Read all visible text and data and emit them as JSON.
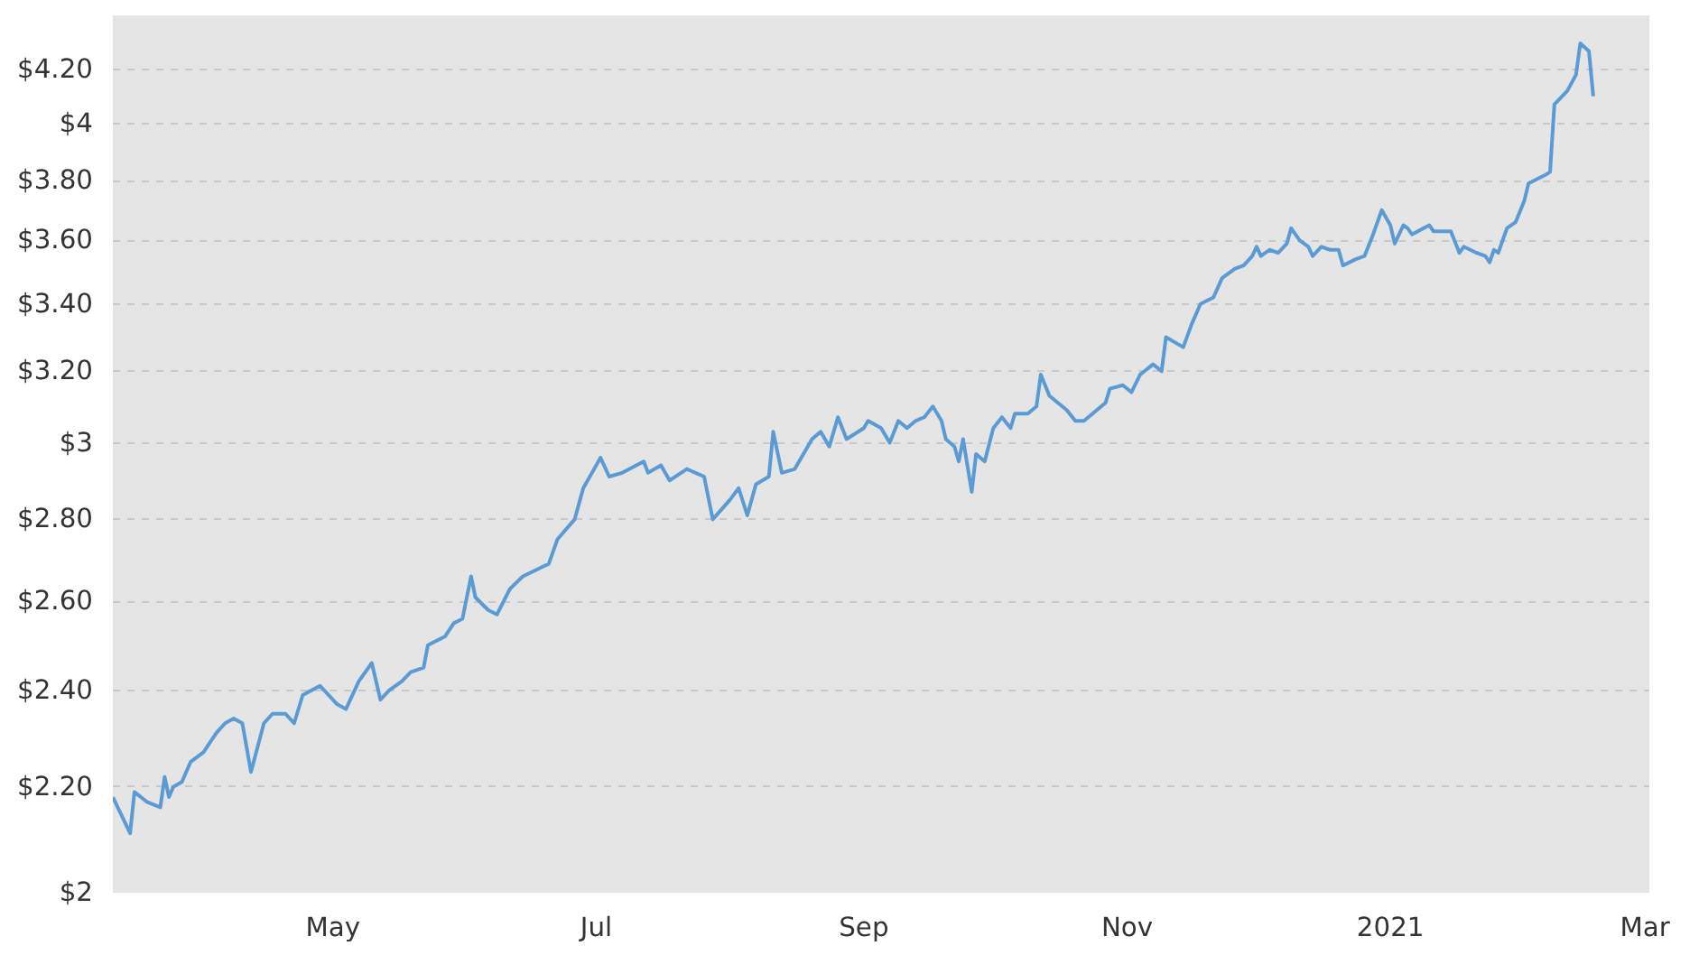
{
  "chart_data": {
    "type": "line",
    "log": "y",
    "grid": "y",
    "line_style": "solid",
    "marker": "none",
    "xlim": [
      "2020-03-11",
      "2021-03-02"
    ],
    "ylim": [
      2,
      4.41
    ],
    "xticks": [
      {
        "value": "2020-05-01",
        "label": "May"
      },
      {
        "value": "2020-07-01",
        "label": "Jul"
      },
      {
        "value": "2020-09-01",
        "label": "Sep"
      },
      {
        "value": "2020-11-01",
        "label": "Nov"
      },
      {
        "value": "2021-01-01",
        "label": "2021"
      },
      {
        "value": "2021-03-01",
        "label": "Mar"
      }
    ],
    "yticks": [
      {
        "value": 2,
        "label": "$2"
      },
      {
        "value": 2.2,
        "label": "$2.20"
      },
      {
        "value": 2.4,
        "label": "$2.40"
      },
      {
        "value": 2.6,
        "label": "$2.60"
      },
      {
        "value": 2.8,
        "label": "$2.80"
      },
      {
        "value": 3,
        "label": "$3"
      },
      {
        "value": 3.2,
        "label": "$3.20"
      },
      {
        "value": 3.4,
        "label": "$3.40"
      },
      {
        "value": 3.6,
        "label": "$3.60"
      },
      {
        "value": 3.8,
        "label": "$3.80"
      },
      {
        "value": 4,
        "label": "$4"
      },
      {
        "value": 4.2,
        "label": "$4.20"
      }
    ],
    "x": [
      "2020-03-11",
      "2020-03-15",
      "2020-03-16",
      "2020-03-19",
      "2020-03-22",
      "2020-03-23",
      "2020-03-24",
      "2020-03-25",
      "2020-03-27",
      "2020-03-29",
      "2020-04-01",
      "2020-04-04",
      "2020-04-06",
      "2020-04-08",
      "2020-04-10",
      "2020-04-12",
      "2020-04-15",
      "2020-04-17",
      "2020-04-20",
      "2020-04-22",
      "2020-04-24",
      "2020-04-28",
      "2020-05-02",
      "2020-05-04",
      "2020-05-07",
      "2020-05-10",
      "2020-05-12",
      "2020-05-14",
      "2020-05-17",
      "2020-05-19",
      "2020-05-22",
      "2020-05-23",
      "2020-05-27",
      "2020-05-29",
      "2020-05-31",
      "2020-06-02",
      "2020-06-03",
      "2020-06-06",
      "2020-06-08",
      "2020-06-11",
      "2020-06-14",
      "2020-06-18",
      "2020-06-20",
      "2020-06-22",
      "2020-06-26",
      "2020-06-28",
      "2020-07-02",
      "2020-07-04",
      "2020-07-07",
      "2020-07-12",
      "2020-07-13",
      "2020-07-16",
      "2020-07-18",
      "2020-07-22",
      "2020-07-24",
      "2020-07-26",
      "2020-07-28",
      "2020-08-01",
      "2020-08-03",
      "2020-08-05",
      "2020-08-07",
      "2020-08-10",
      "2020-08-11",
      "2020-08-13",
      "2020-08-16",
      "2020-08-17",
      "2020-08-20",
      "2020-08-22",
      "2020-08-24",
      "2020-08-26",
      "2020-08-28",
      "2020-09-01",
      "2020-09-02",
      "2020-09-05",
      "2020-09-07",
      "2020-09-09",
      "2020-09-11",
      "2020-09-13",
      "2020-09-15",
      "2020-09-17",
      "2020-09-19",
      "2020-09-20",
      "2020-09-22",
      "2020-09-23",
      "2020-09-24",
      "2020-09-26",
      "2020-09-27",
      "2020-09-29",
      "2020-10-01",
      "2020-10-03",
      "2020-10-05",
      "2020-10-06",
      "2020-10-09",
      "2020-10-11",
      "2020-10-12",
      "2020-10-14",
      "2020-10-18",
      "2020-10-20",
      "2020-10-22",
      "2020-10-24",
      "2020-10-27",
      "2020-10-28",
      "2020-10-31",
      "2020-11-02",
      "2020-11-04",
      "2020-11-07",
      "2020-11-09",
      "2020-11-10",
      "2020-11-14",
      "2020-11-16",
      "2020-11-18",
      "2020-11-21",
      "2020-11-23",
      "2020-11-26",
      "2020-11-28",
      "2020-11-30",
      "2020-12-01",
      "2020-12-02",
      "2020-12-04",
      "2020-12-06",
      "2020-12-08",
      "2020-12-09",
      "2020-12-11",
      "2020-12-13",
      "2020-12-14",
      "2020-12-16",
      "2020-12-18",
      "2020-12-20",
      "2020-12-21",
      "2020-12-24",
      "2020-12-26",
      "2020-12-28",
      "2020-12-30",
      "2021-01-01",
      "2021-01-02",
      "2021-01-04",
      "2021-01-05",
      "2021-01-06",
      "2021-01-10",
      "2021-01-11",
      "2021-01-15",
      "2021-01-17",
      "2021-01-18",
      "2021-01-21",
      "2021-01-23",
      "2021-01-24",
      "2021-01-25",
      "2021-01-26",
      "2021-01-28",
      "2021-01-30",
      "2021-02-01",
      "2021-02-02",
      "2021-02-06",
      "2021-02-07",
      "2021-02-08",
      "2021-02-11",
      "2021-02-13",
      "2021-02-14",
      "2021-02-16",
      "2021-02-17"
    ],
    "series": [
      {
        "color": "#5b9bd5",
        "values": [
          2.18,
          2.11,
          2.19,
          2.17,
          2.16,
          2.22,
          2.18,
          2.2,
          2.21,
          2.25,
          2.27,
          2.31,
          2.33,
          2.34,
          2.33,
          2.23,
          2.33,
          2.35,
          2.35,
          2.33,
          2.39,
          2.41,
          2.37,
          2.36,
          2.42,
          2.46,
          2.38,
          2.4,
          2.42,
          2.44,
          2.45,
          2.5,
          2.52,
          2.55,
          2.56,
          2.66,
          2.61,
          2.58,
          2.57,
          2.63,
          2.66,
          2.68,
          2.69,
          2.75,
          2.8,
          2.88,
          2.96,
          2.91,
          2.92,
          2.95,
          2.92,
          2.94,
          2.9,
          2.93,
          2.92,
          2.91,
          2.8,
          2.85,
          2.88,
          2.81,
          2.89,
          2.91,
          3.03,
          2.92,
          2.93,
          2.95,
          3.01,
          3.03,
          2.99,
          3.07,
          3.01,
          3.04,
          3.06,
          3.04,
          3.0,
          3.06,
          3.04,
          3.06,
          3.07,
          3.1,
          3.06,
          3.01,
          2.99,
          2.95,
          3.01,
          2.87,
          2.97,
          2.95,
          3.04,
          3.07,
          3.04,
          3.08,
          3.08,
          3.1,
          3.19,
          3.13,
          3.09,
          3.06,
          3.06,
          3.08,
          3.11,
          3.15,
          3.16,
          3.14,
          3.19,
          3.22,
          3.2,
          3.3,
          3.27,
          3.34,
          3.4,
          3.42,
          3.48,
          3.51,
          3.52,
          3.55,
          3.58,
          3.55,
          3.57,
          3.56,
          3.59,
          3.64,
          3.6,
          3.58,
          3.55,
          3.58,
          3.57,
          3.57,
          3.52,
          3.54,
          3.55,
          3.62,
          3.7,
          3.65,
          3.59,
          3.65,
          3.64,
          3.62,
          3.65,
          3.63,
          3.63,
          3.56,
          3.58,
          3.56,
          3.55,
          3.53,
          3.57,
          3.56,
          3.64,
          3.66,
          3.73,
          3.79,
          3.82,
          3.83,
          4.07,
          4.12,
          4.18,
          4.3,
          4.27,
          4.1
        ]
      }
    ]
  }
}
